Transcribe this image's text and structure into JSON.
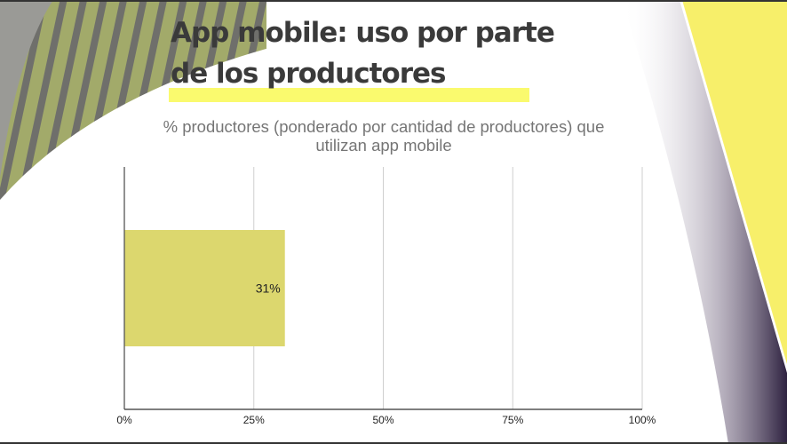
{
  "slide": {
    "title_line1": "App mobile: uso por parte",
    "title_line2": "de los  productores"
  },
  "colors": {
    "bar": "#dcd76e",
    "accent_yellow": "#f7ef6a",
    "stripe_green": "#a2aa6a",
    "highlight": "#fafa6e"
  },
  "chart_data": {
    "type": "bar",
    "orientation": "horizontal",
    "title": "% productores (ponderado por cantidad de productores) que utilizan app mobile",
    "title_lines": [
      "% productores (ponderado por cantidad de productores) que",
      "utilizan app mobile"
    ],
    "categories": [
      ""
    ],
    "values": [
      31
    ],
    "data_labels": [
      "31%"
    ],
    "xlim": [
      0,
      100
    ],
    "xticks": [
      0,
      25,
      50,
      75,
      100
    ],
    "xtick_labels": [
      "0%",
      "25%",
      "50%",
      "75%",
      "100%"
    ],
    "grid": true,
    "xlabel": "",
    "ylabel": ""
  }
}
